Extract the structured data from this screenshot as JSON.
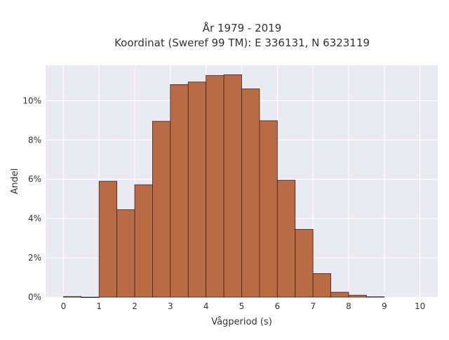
{
  "chart_data": {
    "type": "bar",
    "title": "År 1979 - 2019",
    "subtitle": "Koordinat (Sweref 99 TM): E 336131, N 6323119",
    "xlabel": "Vågperiod (s)",
    "ylabel": "Andel",
    "xlim": [
      -0.5,
      10.5
    ],
    "ylim": [
      0,
      11.8
    ],
    "x_ticks": [
      0,
      1,
      2,
      3,
      4,
      5,
      6,
      7,
      8,
      9,
      10
    ],
    "y_ticks": [
      0,
      2,
      4,
      6,
      8,
      10
    ],
    "y_tick_labels": [
      "0%",
      "2%",
      "4%",
      "6%",
      "8%",
      "10%"
    ],
    "bin_width": 0.5,
    "bins": [
      {
        "start": 0.0,
        "value": 0.03
      },
      {
        "start": 0.5,
        "value": 0.0
      },
      {
        "start": 1.0,
        "value": 5.9
      },
      {
        "start": 1.5,
        "value": 4.45
      },
      {
        "start": 2.0,
        "value": 5.72
      },
      {
        "start": 2.5,
        "value": 8.95
      },
      {
        "start": 3.0,
        "value": 10.82
      },
      {
        "start": 3.5,
        "value": 10.95
      },
      {
        "start": 4.0,
        "value": 11.28
      },
      {
        "start": 4.5,
        "value": 11.32
      },
      {
        "start": 5.0,
        "value": 10.6
      },
      {
        "start": 5.5,
        "value": 8.98
      },
      {
        "start": 6.0,
        "value": 5.95
      },
      {
        "start": 6.5,
        "value": 3.45
      },
      {
        "start": 7.0,
        "value": 1.2
      },
      {
        "start": 7.5,
        "value": 0.25
      },
      {
        "start": 8.0,
        "value": 0.1
      },
      {
        "start": 8.5,
        "value": 0.02
      }
    ],
    "grid": true,
    "bar_color": "#b86b45",
    "bar_edge_color": "#3d2418",
    "plot_background": "#eaeaf2"
  }
}
